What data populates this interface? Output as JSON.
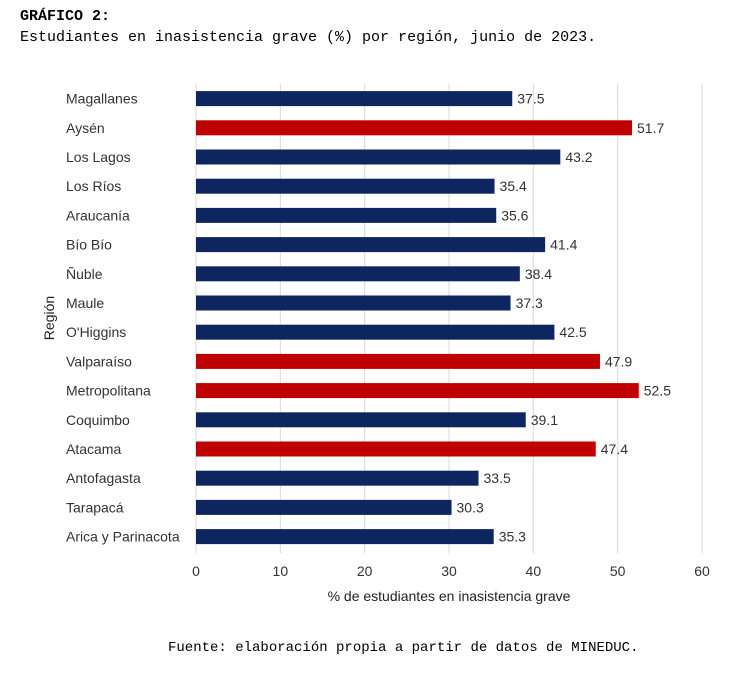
{
  "heading": {
    "label": "GRÁFICO 2:",
    "subtitle": "Estudiantes en inasistencia grave (%) por región, junio de 2023."
  },
  "source": "Fuente: elaboración propia a partir de datos de MINEDUC.",
  "colors": {
    "normal": "#0e2660",
    "highlight": "#c00000",
    "grid": "#d9d9d9",
    "text": "#333333"
  },
  "chart_data": {
    "type": "bar",
    "orientation": "horizontal",
    "title": "",
    "xlabel": "% de estudiantes en inasistencia grave",
    "ylabel": "Región",
    "xlim": [
      0,
      60
    ],
    "xticks": [
      "0",
      "10",
      "20",
      "30",
      "40",
      "50",
      "60"
    ],
    "grid": true,
    "categories": [
      "Magallanes",
      "Aysén",
      "Los Lagos",
      "Los Ríos",
      "Araucanía",
      "Bío Bío",
      "Ñuble",
      "Maule",
      "O'Higgins",
      "Valparaíso",
      "Metropolitana",
      "Coquimbo",
      "Atacama",
      "Antofagasta",
      "Tarapacá",
      "Arica y Parinacota"
    ],
    "values": [
      37.5,
      51.7,
      43.2,
      35.4,
      35.6,
      41.4,
      38.4,
      37.3,
      42.5,
      47.9,
      52.5,
      39.1,
      47.4,
      33.5,
      30.3,
      35.3
    ],
    "value_labels": [
      "37.5",
      "51.7",
      "43.2",
      "35.4",
      "35.6",
      "41.4",
      "38.4",
      "37.3",
      "42.5",
      "47.9",
      "52.5",
      "39.1",
      "47.4",
      "33.5",
      "30.3",
      "35.3"
    ],
    "highlighted": [
      false,
      true,
      false,
      false,
      false,
      false,
      false,
      false,
      false,
      true,
      true,
      false,
      true,
      false,
      false,
      false
    ]
  }
}
